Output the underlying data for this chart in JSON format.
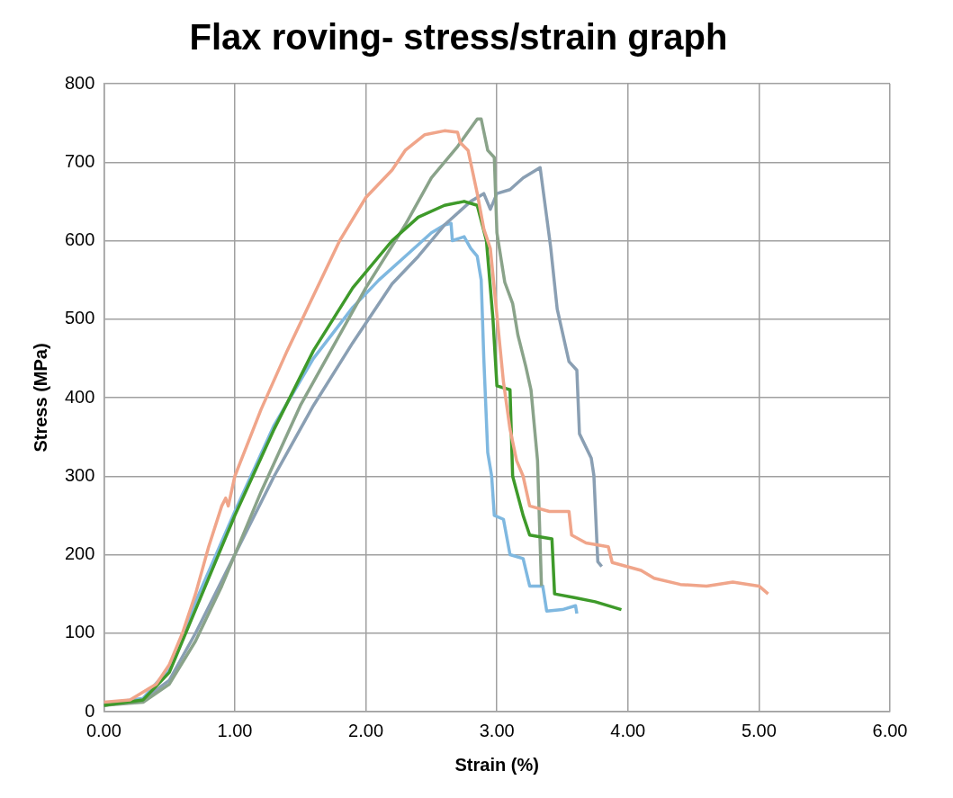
{
  "chart_data": {
    "type": "line",
    "title": "Flax roving- stress/strain graph",
    "xlabel": "Strain (%)",
    "ylabel": "Stress (MPa)",
    "xlim": [
      0,
      6
    ],
    "xticks": [
      {
        "value": 0,
        "label": "0.00"
      },
      {
        "value": 1,
        "label": "1.00"
      },
      {
        "value": 2,
        "label": "2.00"
      },
      {
        "value": 3,
        "label": "3.00"
      },
      {
        "value": 4,
        "label": "4.00"
      },
      {
        "value": 5,
        "label": "5.00"
      },
      {
        "value": 6,
        "label": "6.00"
      }
    ],
    "ylim": [
      0,
      800
    ],
    "yticks": [
      0,
      100,
      200,
      300,
      400,
      500,
      600,
      700,
      800
    ],
    "grid": true,
    "marker": "none",
    "line_style": "solid",
    "series": [
      {
        "color": "#f0a58a",
        "x": [
          0,
          0.2,
          0.4,
          0.5,
          0.6,
          0.7,
          0.8,
          0.9,
          0.93,
          0.95,
          1.0,
          1.2,
          1.4,
          1.6,
          1.8,
          2.0,
          2.2,
          2.3,
          2.45,
          2.6,
          2.7,
          2.72,
          2.78,
          2.85,
          2.9,
          2.95,
          3.0,
          3.05,
          3.1,
          3.15,
          3.2,
          3.25,
          3.4,
          3.55,
          3.57,
          3.68,
          3.85,
          3.88,
          4.1,
          4.2,
          4.4,
          4.6,
          4.8,
          5.0,
          5.07
        ],
        "values": [
          12,
          15,
          35,
          60,
          100,
          150,
          210,
          262,
          272,
          262,
          300,
          385,
          460,
          530,
          600,
          655,
          690,
          715,
          735,
          740,
          738,
          725,
          715,
          660,
          615,
          590,
          505,
          420,
          360,
          320,
          300,
          262,
          255,
          255,
          225,
          215,
          210,
          190,
          180,
          170,
          162,
          160,
          165,
          160,
          150
        ]
      },
      {
        "color": "#3e9a2a",
        "x": [
          0,
          0.3,
          0.5,
          0.7,
          1.0,
          1.3,
          1.6,
          1.9,
          2.2,
          2.4,
          2.6,
          2.75,
          2.85,
          2.92,
          2.97,
          3.0,
          3.1,
          3.12,
          3.2,
          3.25,
          3.42,
          3.44,
          3.6,
          3.75,
          3.95
        ],
        "values": [
          8,
          15,
          50,
          130,
          250,
          360,
          460,
          540,
          600,
          630,
          645,
          650,
          645,
          600,
          500,
          415,
          410,
          300,
          250,
          225,
          220,
          150,
          145,
          140,
          130
        ]
      },
      {
        "color": "#8aa38a",
        "x": [
          0,
          0.3,
          0.5,
          0.7,
          0.9,
          1.2,
          1.5,
          1.8,
          2.0,
          2.3,
          2.5,
          2.7,
          2.85,
          2.88,
          2.93,
          2.98,
          3.0,
          3.06,
          3.12,
          3.16,
          3.22,
          3.26,
          3.31,
          3.34
        ],
        "values": [
          8,
          12,
          35,
          90,
          160,
          280,
          390,
          480,
          540,
          620,
          680,
          720,
          755,
          755,
          715,
          706,
          610,
          547,
          520,
          480,
          440,
          410,
          320,
          160
        ]
      },
      {
        "color": "#8a9fb3",
        "x": [
          0,
          0.3,
          0.5,
          0.7,
          1.0,
          1.3,
          1.6,
          1.9,
          2.2,
          2.4,
          2.6,
          2.8,
          2.9,
          2.95,
          3.0,
          3.1,
          3.2,
          3.33,
          3.41,
          3.46,
          3.55,
          3.61,
          3.63,
          3.72,
          3.74,
          3.77,
          3.8
        ],
        "values": [
          8,
          15,
          40,
          100,
          200,
          300,
          390,
          470,
          545,
          580,
          620,
          650,
          660,
          640,
          660,
          665,
          680,
          693,
          592,
          513,
          446,
          435,
          354,
          323,
          301,
          191,
          185
        ]
      },
      {
        "color": "#7fb8e0",
        "x": [
          0,
          0.3,
          0.5,
          0.7,
          1.0,
          1.3,
          1.6,
          1.9,
          2.1,
          2.3,
          2.5,
          2.6,
          2.65,
          2.66,
          2.75,
          2.8,
          2.85,
          2.88,
          2.9,
          2.93,
          2.96,
          2.98,
          3.05,
          3.1,
          3.2,
          3.25,
          3.35,
          3.38,
          3.5,
          3.6,
          3.61
        ],
        "values": [
          10,
          17,
          55,
          140,
          255,
          365,
          450,
          515,
          550,
          580,
          610,
          620,
          622,
          600,
          605,
          590,
          580,
          550,
          450,
          330,
          300,
          250,
          245,
          200,
          195,
          160,
          160,
          128,
          130,
          135,
          125
        ]
      }
    ]
  }
}
